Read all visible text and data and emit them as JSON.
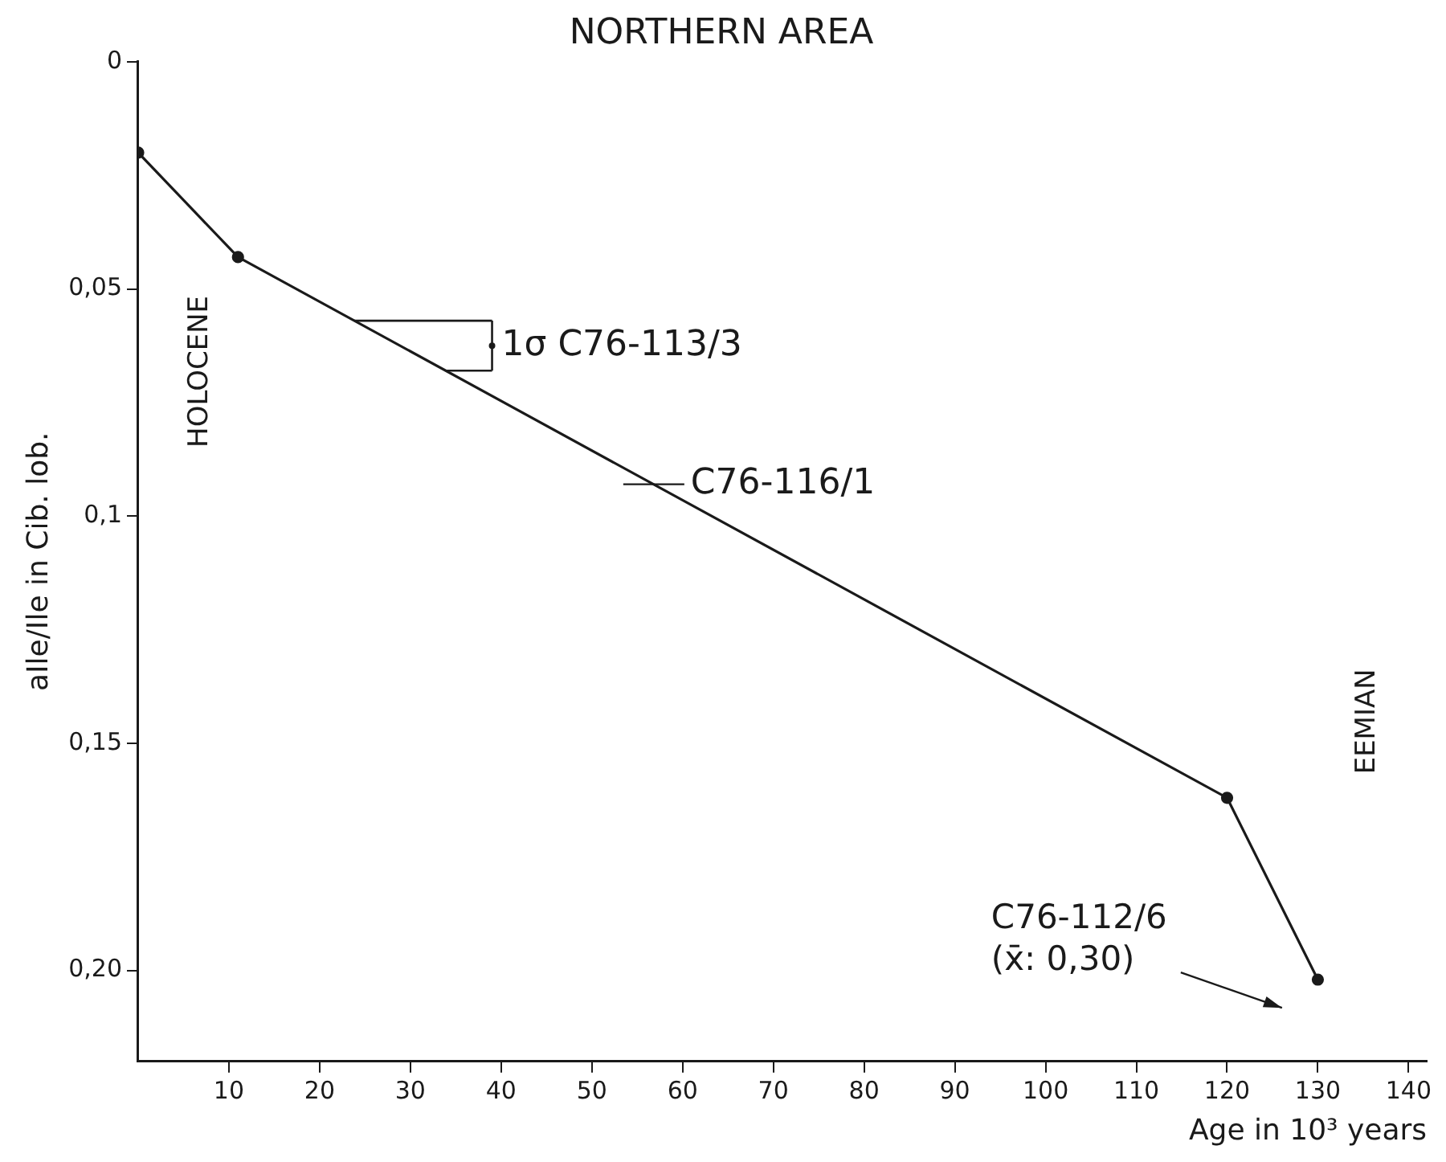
{
  "chart_data": {
    "type": "line",
    "title": "NORTHERN AREA",
    "xlabel": "Age in 10³ years",
    "ylabel": "aIle/Ile in Cib. lob.",
    "series": [
      {
        "color": "#1a1a1a",
        "x": [
          0,
          11,
          120,
          130
        ],
        "values": [
          0.02,
          0.043,
          0.162,
          0.202
        ]
      },
      {
        "type": "scatter",
        "color": "#1a1a1a",
        "marker": "circle",
        "x": [
          39
        ],
        "values": [
          0.0625
        ],
        "errors": [
          [
            0.057,
            0.068
          ]
        ]
      }
    ],
    "xlim": [
      0,
      142
    ],
    "xticks": [
      10,
      20,
      30,
      40,
      50,
      60,
      70,
      80,
      90,
      100,
      110,
      120,
      130,
      140
    ],
    "ylim": [
      0.22,
      0
    ],
    "yticks": [
      {
        "value": 0,
        "label": "0"
      },
      {
        "value": 0.05,
        "label": "0,05"
      },
      {
        "value": 0.1,
        "label": "0,1"
      },
      {
        "value": 0.15,
        "label": "0,15"
      },
      {
        "value": 0.2,
        "label": "0,20"
      }
    ],
    "annotations": [
      "HOLOCENE",
      "EEMIAN",
      {
        "text": "1σ C76-113/3",
        "x": 39,
        "y": 0.0625
      },
      {
        "text": "C76-116/1",
        "x": 57,
        "y": 0.093
      },
      "C76-112/6\n(x̄: 0,30)"
    ],
    "grid": false,
    "legend": false,
    "marker": "circle",
    "line_style": "solid"
  }
}
